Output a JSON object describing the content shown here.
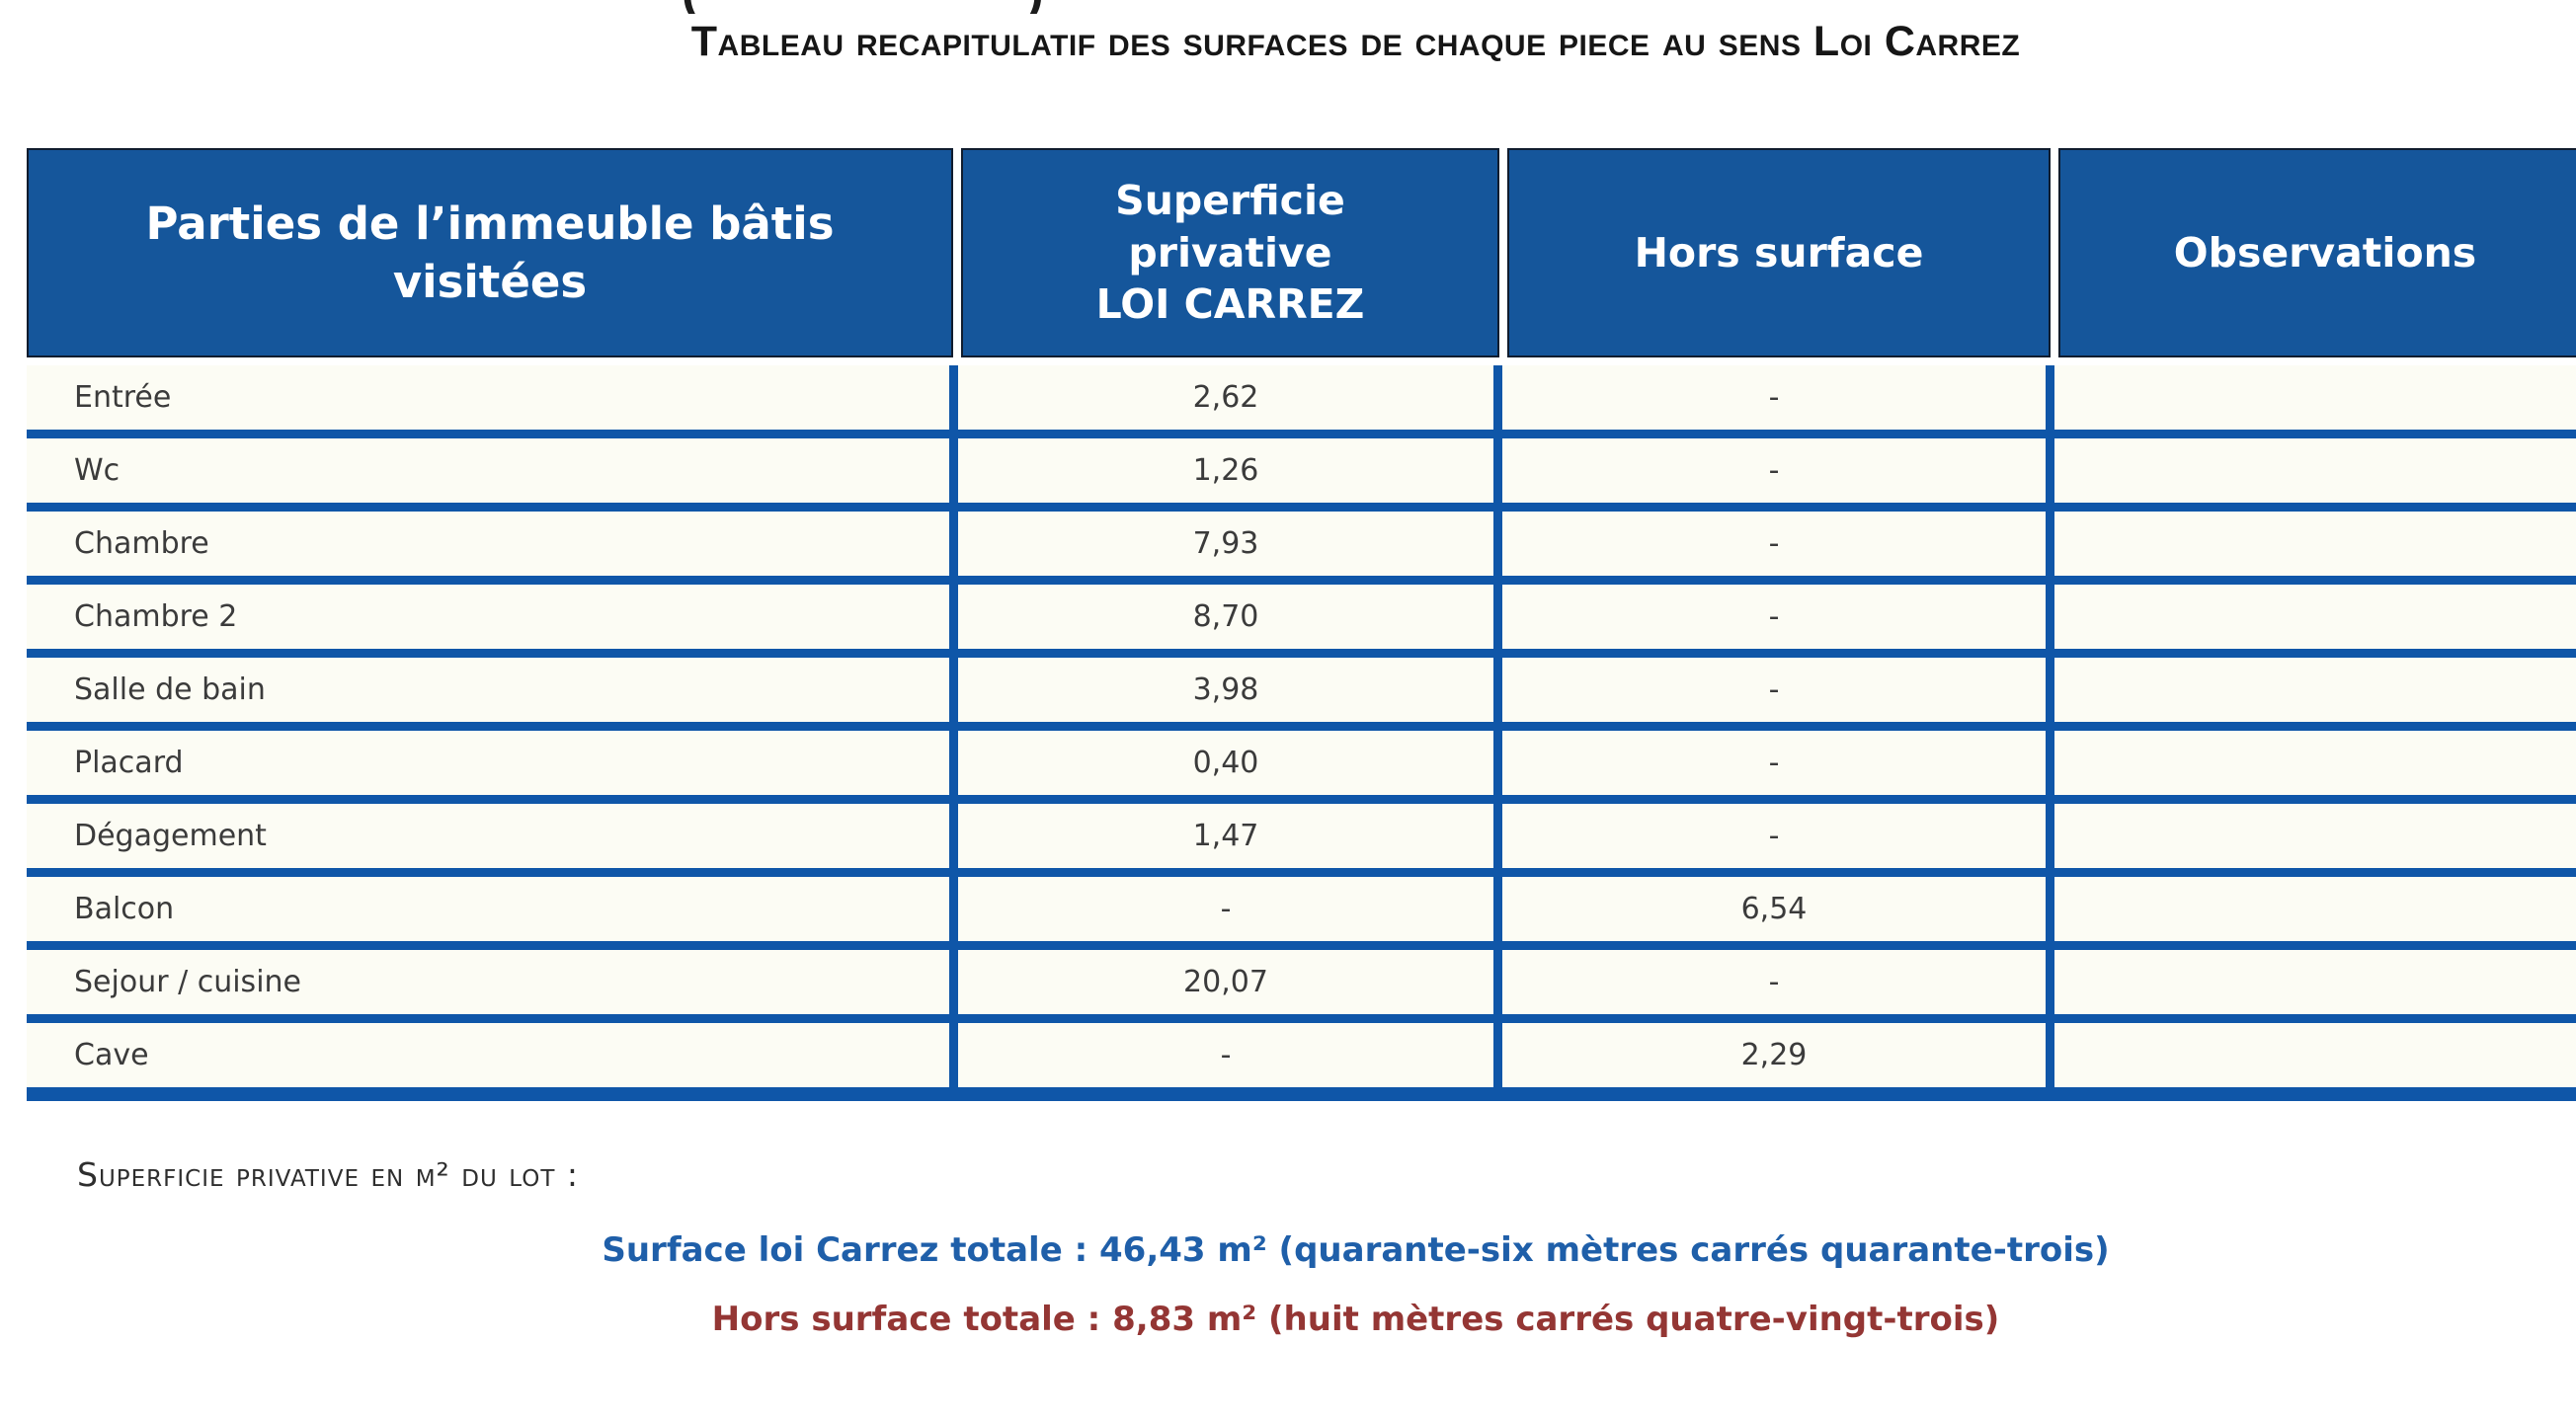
{
  "document": {
    "clipped_line_fragments": {
      "left_paren": "(",
      "right_paren": ")"
    },
    "title": "Tableau recapitulatif des surfaces de chaque piece au sens Loi Carrez",
    "table": {
      "headers": {
        "parties": "Parties de l’immeuble bâtis visitées",
        "superficie_lines": [
          "Superficie",
          "privative",
          "LOI CARREZ"
        ],
        "hors": "Hors surface",
        "observations": "Observations"
      },
      "rows": [
        {
          "piece": "Entrée",
          "superficie": "2,62",
          "hors": "-",
          "observations": ""
        },
        {
          "piece": "Wc",
          "superficie": "1,26",
          "hors": "-",
          "observations": ""
        },
        {
          "piece": "Chambre",
          "superficie": "7,93",
          "hors": "-",
          "observations": ""
        },
        {
          "piece": "Chambre 2",
          "superficie": "8,70",
          "hors": "-",
          "observations": ""
        },
        {
          "piece": "Salle de bain",
          "superficie": "3,98",
          "hors": "-",
          "observations": ""
        },
        {
          "piece": "Placard",
          "superficie": "0,40",
          "hors": "-",
          "observations": ""
        },
        {
          "piece": "Dégagement",
          "superficie": "1,47",
          "hors": "-",
          "observations": ""
        },
        {
          "piece": "Balcon",
          "superficie": "-",
          "hors": "6,54",
          "observations": ""
        },
        {
          "piece": "Sejour / cuisine",
          "superficie": "20,07",
          "hors": "-",
          "observations": ""
        },
        {
          "piece": "Cave",
          "superficie": "-",
          "hors": "2,29",
          "observations": ""
        }
      ]
    },
    "summary": {
      "lot_label": "Superficie privative en m² du lot :",
      "carrez_total": "Surface loi Carrez totale : 46,43 m² (quarante-six mètres carrés quarante-trois)",
      "hors_total": "Hors surface totale : 8,83 m² (huit mètres carrés quatre-vingt-trois)"
    },
    "colors": {
      "header_bg": "#15569b",
      "grid_blue": "#0f56a8",
      "header_border": "#101c2e",
      "row_bg": "#fcfcf4",
      "total_blue": "#1f5fa9",
      "total_red": "#943634"
    }
  }
}
